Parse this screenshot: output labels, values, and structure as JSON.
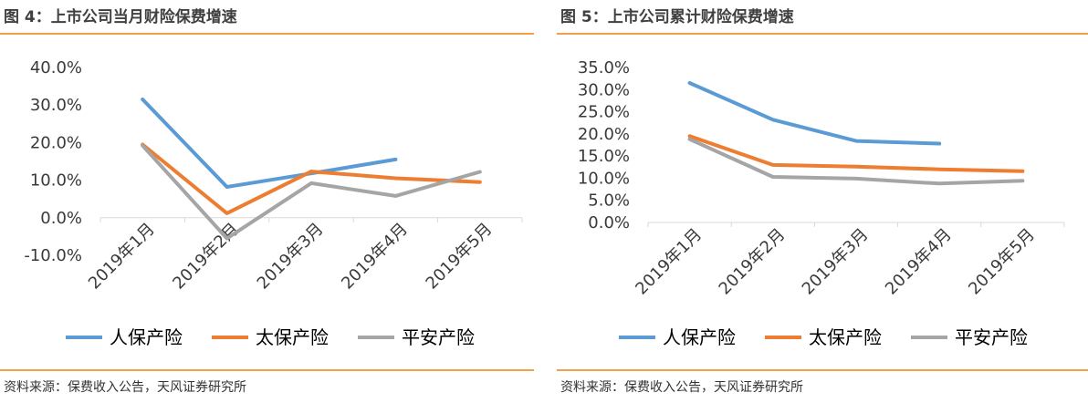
{
  "charts": [
    {
      "figure_title": "图 4：上市公司当月财险保费增速",
      "source": "资料来源：保费收入公告，天风证券研究所"
    },
    {
      "figure_title": "图 5：上市公司累计财险保费增速",
      "source": "资料来源：保费收入公告，天风证券研究所"
    }
  ],
  "chart_data": [
    {
      "type": "line",
      "title": "图 4：上市公司当月财险保费增速",
      "xlabel": "",
      "ylabel": "",
      "categories": [
        "2019年1月",
        "2019年2月",
        "2019年3月",
        "2019年4月",
        "2019年5月"
      ],
      "y_ticks": [
        "40.0%",
        "30.0%",
        "20.0%",
        "10.0%",
        "0.0%",
        "-10.0%"
      ],
      "ylim": [
        -10,
        40
      ],
      "grid": false,
      "legend_position": "bottom",
      "series": [
        {
          "name": "人保产险",
          "color": "#5b9bd5",
          "values": [
            31.5,
            8.2,
            11.8,
            15.5,
            null
          ]
        },
        {
          "name": "太保产险",
          "color": "#ed7d31",
          "values": [
            19.5,
            1.2,
            12.3,
            10.5,
            9.5
          ]
        },
        {
          "name": "平安产险",
          "color": "#a5a5a5",
          "values": [
            19.2,
            -5.5,
            9.2,
            5.8,
            12.2
          ]
        }
      ]
    },
    {
      "type": "line",
      "title": "图 5：上市公司累计财险保费增速",
      "xlabel": "",
      "ylabel": "",
      "categories": [
        "2019年1月",
        "2019年2月",
        "2019年3月",
        "2019年4月",
        "2019年5月"
      ],
      "y_ticks": [
        "35.0%",
        "30.0%",
        "25.0%",
        "20.0%",
        "15.0%",
        "10.0%",
        "5.0%",
        "0.0%"
      ],
      "ylim": [
        0,
        35
      ],
      "grid": false,
      "legend_position": "bottom",
      "series": [
        {
          "name": "人保产险",
          "color": "#5b9bd5",
          "values": [
            31.5,
            23.2,
            18.4,
            17.8,
            null
          ]
        },
        {
          "name": "太保产险",
          "color": "#ed7d31",
          "values": [
            19.5,
            13.0,
            12.6,
            12.0,
            11.6
          ]
        },
        {
          "name": "平安产险",
          "color": "#a5a5a5",
          "values": [
            18.8,
            10.3,
            9.9,
            8.8,
            9.4
          ]
        }
      ]
    }
  ]
}
